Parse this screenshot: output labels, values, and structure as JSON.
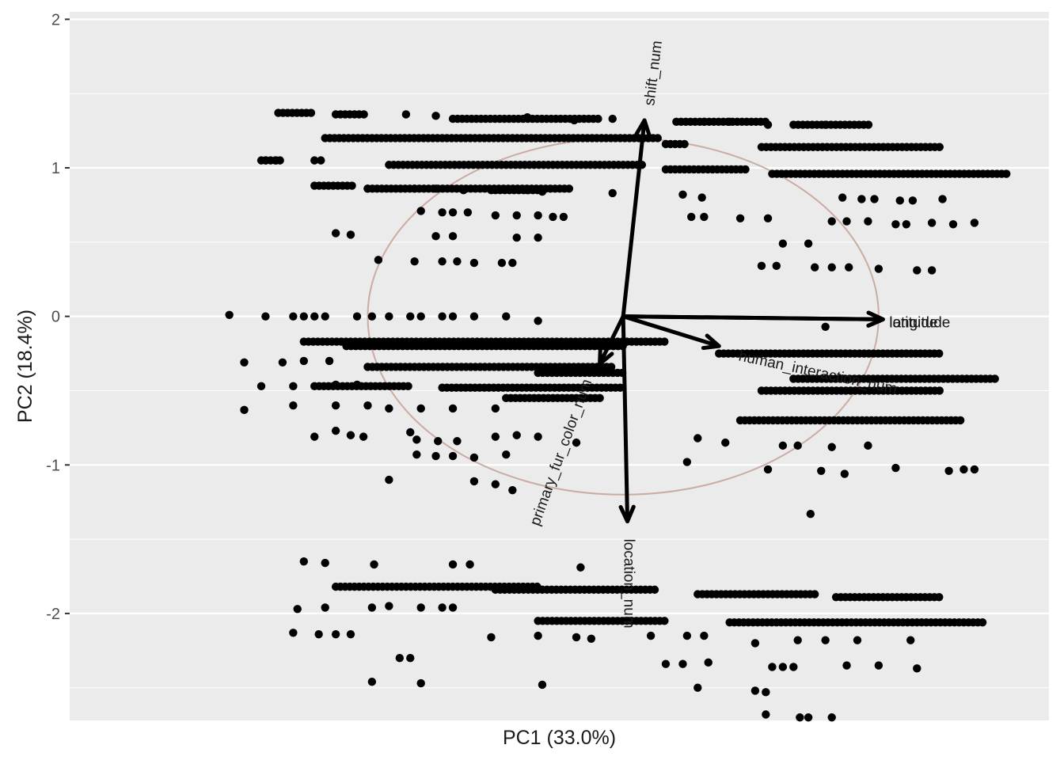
{
  "chart_data": {
    "type": "scatter",
    "subtype": "pca-biplot",
    "title": "",
    "xlabel": "PC1 (33.0%)",
    "ylabel": "PC2 (18.4%)",
    "xlim": [
      -2.6,
      2.0
    ],
    "ylim": [
      -2.72,
      2.05
    ],
    "y_ticks": [
      2,
      1,
      0,
      -1,
      -2
    ],
    "y_tick_labels": [
      "2",
      "1",
      "0",
      "-1",
      "-2"
    ],
    "x_ticks": [],
    "grid": true,
    "legend": "none",
    "colors": {
      "panel": "#ebebeb",
      "grid": "#ffffff",
      "points": "#000000",
      "arrows": "#000000",
      "circle": "#c9aca2"
    },
    "correlation_circle": {
      "center": [
        0.0,
        0.0
      ],
      "radius": 1.2
    },
    "loadings": [
      {
        "name": "shift_num",
        "x": 0.1,
        "y": 1.32
      },
      {
        "name": "longitude",
        "x": 1.22,
        "y": -0.02
      },
      {
        "name": "latitude",
        "x": 1.22,
        "y": -0.02
      },
      {
        "name": "human_interaction_num",
        "x": 0.45,
        "y": -0.2
      },
      {
        "name": "primary_fur_color_num",
        "x": -0.11,
        "y": -0.32
      },
      {
        "name": "location_num",
        "x": 0.02,
        "y": -1.38
      }
    ],
    "bands": [
      {
        "y": 1.37,
        "x_from": -1.62,
        "x_to": -1.45
      },
      {
        "y": 1.36,
        "x_from": -1.35,
        "x_to": -1.2
      },
      {
        "y": 1.33,
        "x_from": -0.8,
        "x_to": -0.1
      },
      {
        "y": 1.31,
        "x_from": 0.25,
        "x_to": 0.68
      },
      {
        "y": 1.29,
        "x_from": 0.8,
        "x_to": 1.17
      },
      {
        "y": 1.2,
        "x_from": -1.4,
        "x_to": 0.17
      },
      {
        "y": 1.16,
        "x_from": 0.2,
        "x_to": 0.3
      },
      {
        "y": 1.14,
        "x_from": 0.65,
        "x_to": 1.5
      },
      {
        "y": 1.05,
        "x_from": -1.7,
        "x_to": -1.6
      },
      {
        "y": 1.02,
        "x_from": -1.1,
        "x_to": 0.1
      },
      {
        "y": 0.99,
        "x_from": 0.2,
        "x_to": 0.58
      },
      {
        "y": 0.96,
        "x_from": 0.7,
        "x_to": 1.8
      },
      {
        "y": 0.88,
        "x_from": -1.45,
        "x_to": -1.27
      },
      {
        "y": 0.86,
        "x_from": -1.2,
        "x_to": -0.25
      },
      {
        "y": 0.85,
        "x_from": -0.6,
        "x_to": -0.4
      },
      {
        "y": -0.17,
        "x_from": -1.5,
        "x_to": 0.2
      },
      {
        "y": -0.2,
        "x_from": -1.3,
        "x_to": 0.0
      },
      {
        "y": -0.25,
        "x_from": 0.45,
        "x_to": 1.5
      },
      {
        "y": -0.34,
        "x_from": -1.2,
        "x_to": -0.05
      },
      {
        "y": -0.38,
        "x_from": -0.4,
        "x_to": 0.0
      },
      {
        "y": -0.42,
        "x_from": 0.8,
        "x_to": 1.75
      },
      {
        "y": -0.47,
        "x_from": -1.45,
        "x_to": -1.0
      },
      {
        "y": -0.48,
        "x_from": -0.85,
        "x_to": 0.0
      },
      {
        "y": -0.5,
        "x_from": 0.65,
        "x_to": 1.5
      },
      {
        "y": -0.55,
        "x_from": -0.55,
        "x_to": -0.1
      },
      {
        "y": -0.7,
        "x_from": 0.55,
        "x_to": 1.6
      },
      {
        "y": -1.82,
        "x_from": -1.35,
        "x_to": -0.4
      },
      {
        "y": -1.84,
        "x_from": -0.6,
        "x_to": 0.15
      },
      {
        "y": -1.87,
        "x_from": 0.35,
        "x_to": 0.9
      },
      {
        "y": -1.89,
        "x_from": 1.0,
        "x_to": 1.5
      },
      {
        "y": -2.05,
        "x_from": -0.4,
        "x_to": 0.2
      },
      {
        "y": -2.06,
        "x_from": 0.5,
        "x_to": 1.7
      }
    ],
    "points": [
      [
        -1.85,
        0.01
      ],
      [
        -1.68,
        0.0
      ],
      [
        -1.55,
        0.0
      ],
      [
        -1.5,
        0.0
      ],
      [
        -1.45,
        0.0
      ],
      [
        -1.4,
        0.0
      ],
      [
        -1.25,
        0.0
      ],
      [
        -1.18,
        0.0
      ],
      [
        -1.1,
        0.0
      ],
      [
        -1.0,
        0.0
      ],
      [
        -0.95,
        0.0
      ],
      [
        -0.85,
        0.0
      ],
      [
        -0.8,
        0.0
      ],
      [
        -0.7,
        0.0
      ],
      [
        -0.55,
        0.0
      ],
      [
        -0.4,
        -0.03
      ],
      [
        0.95,
        -0.07
      ],
      [
        -1.02,
        1.36
      ],
      [
        -0.88,
        1.35
      ],
      [
        -0.45,
        1.34
      ],
      [
        -0.23,
        1.32
      ],
      [
        -0.05,
        1.33
      ],
      [
        0.38,
        1.31
      ],
      [
        0.5,
        1.31
      ],
      [
        0.68,
        1.29
      ],
      [
        0.95,
        1.29
      ],
      [
        -1.68,
        1.05
      ],
      [
        -1.63,
        1.05
      ],
      [
        -1.45,
        1.05
      ],
      [
        -1.42,
        1.05
      ],
      [
        -1.2,
        0.86
      ],
      [
        -0.98,
        0.86
      ],
      [
        -0.88,
        0.86
      ],
      [
        -0.75,
        0.85
      ],
      [
        -0.62,
        0.85
      ],
      [
        -0.45,
        0.85
      ],
      [
        -0.38,
        0.84
      ],
      [
        -0.05,
        0.83
      ],
      [
        0.28,
        0.82
      ],
      [
        0.37,
        0.8
      ],
      [
        1.03,
        0.8
      ],
      [
        1.12,
        0.79
      ],
      [
        1.18,
        0.79
      ],
      [
        1.3,
        0.78
      ],
      [
        1.36,
        0.78
      ],
      [
        1.5,
        0.79
      ],
      [
        -0.95,
        0.71
      ],
      [
        -0.85,
        0.7
      ],
      [
        -0.8,
        0.7
      ],
      [
        -0.73,
        0.7
      ],
      [
        -0.6,
        0.68
      ],
      [
        -0.5,
        0.68
      ],
      [
        -0.4,
        0.68
      ],
      [
        -0.33,
        0.67
      ],
      [
        -0.28,
        0.67
      ],
      [
        0.32,
        0.67
      ],
      [
        0.38,
        0.67
      ],
      [
        0.55,
        0.66
      ],
      [
        0.68,
        0.66
      ],
      [
        0.98,
        0.64
      ],
      [
        1.05,
        0.64
      ],
      [
        1.15,
        0.64
      ],
      [
        1.28,
        0.62
      ],
      [
        1.33,
        0.62
      ],
      [
        1.45,
        0.63
      ],
      [
        1.55,
        0.62
      ],
      [
        1.65,
        0.63
      ],
      [
        -1.35,
        0.56
      ],
      [
        -1.28,
        0.55
      ],
      [
        -0.88,
        0.54
      ],
      [
        -0.8,
        0.54
      ],
      [
        -0.5,
        0.53
      ],
      [
        -0.4,
        0.53
      ],
      [
        0.75,
        0.49
      ],
      [
        0.87,
        0.49
      ],
      [
        -1.15,
        0.38
      ],
      [
        -0.98,
        0.37
      ],
      [
        -0.85,
        0.37
      ],
      [
        -0.78,
        0.37
      ],
      [
        -0.7,
        0.36
      ],
      [
        -0.57,
        0.36
      ],
      [
        -0.52,
        0.36
      ],
      [
        0.65,
        0.34
      ],
      [
        0.72,
        0.34
      ],
      [
        0.9,
        0.33
      ],
      [
        0.98,
        0.33
      ],
      [
        1.06,
        0.33
      ],
      [
        1.2,
        0.32
      ],
      [
        1.38,
        0.31
      ],
      [
        1.45,
        0.31
      ],
      [
        -1.78,
        -0.31
      ],
      [
        -1.6,
        -0.31
      ],
      [
        -1.5,
        -0.3
      ],
      [
        -1.38,
        -0.3
      ],
      [
        -1.7,
        -0.47
      ],
      [
        -1.55,
        -0.47
      ],
      [
        -1.35,
        -0.46
      ],
      [
        -1.25,
        -0.46
      ],
      [
        -1.78,
        -0.63
      ],
      [
        -1.55,
        -0.6
      ],
      [
        -1.35,
        -0.6
      ],
      [
        -1.2,
        -0.6
      ],
      [
        -1.1,
        -0.62
      ],
      [
        -0.95,
        -0.62
      ],
      [
        -0.8,
        -0.62
      ],
      [
        -0.6,
        -0.62
      ],
      [
        -1.45,
        -0.81
      ],
      [
        -1.35,
        -0.77
      ],
      [
        -1.28,
        -0.8
      ],
      [
        -1.22,
        -0.81
      ],
      [
        -1.0,
        -0.78
      ],
      [
        -0.97,
        -0.83
      ],
      [
        -0.87,
        -0.84
      ],
      [
        -0.78,
        -0.84
      ],
      [
        -0.6,
        -0.81
      ],
      [
        -0.5,
        -0.8
      ],
      [
        -0.4,
        -0.81
      ],
      [
        -0.22,
        -0.85
      ],
      [
        0.35,
        -0.82
      ],
      [
        0.48,
        -0.85
      ],
      [
        0.75,
        -0.87
      ],
      [
        0.82,
        -0.87
      ],
      [
        0.98,
        -0.88
      ],
      [
        1.15,
        -0.87
      ],
      [
        -0.97,
        -0.93
      ],
      [
        -0.88,
        -0.94
      ],
      [
        -0.8,
        -0.94
      ],
      [
        -0.7,
        -0.95
      ],
      [
        -0.55,
        -0.93
      ],
      [
        0.3,
        -0.98
      ],
      [
        0.68,
        -1.03
      ],
      [
        0.93,
        -1.04
      ],
      [
        1.04,
        -1.06
      ],
      [
        1.28,
        -1.02
      ],
      [
        1.53,
        -1.04
      ],
      [
        1.6,
        -1.03
      ],
      [
        1.65,
        -1.03
      ],
      [
        -1.1,
        -1.1
      ],
      [
        -0.7,
        -1.11
      ],
      [
        -0.6,
        -1.13
      ],
      [
        -0.52,
        -1.17
      ],
      [
        0.88,
        -1.33
      ],
      [
        -1.5,
        -1.65
      ],
      [
        -1.4,
        -1.66
      ],
      [
        -1.17,
        -1.67
      ],
      [
        -0.8,
        -1.67
      ],
      [
        -0.72,
        -1.67
      ],
      [
        -0.2,
        -1.69
      ],
      [
        -1.53,
        -1.97
      ],
      [
        -1.4,
        -1.96
      ],
      [
        -1.18,
        -1.96
      ],
      [
        -1.1,
        -1.95
      ],
      [
        -0.95,
        -1.96
      ],
      [
        -0.85,
        -1.96
      ],
      [
        -0.8,
        -1.96
      ],
      [
        -1.55,
        -2.13
      ],
      [
        -1.43,
        -2.14
      ],
      [
        -1.35,
        -2.14
      ],
      [
        -1.28,
        -2.14
      ],
      [
        -0.62,
        -2.16
      ],
      [
        -0.4,
        -2.15
      ],
      [
        -0.22,
        -2.16
      ],
      [
        -0.15,
        -2.17
      ],
      [
        0.13,
        -2.15
      ],
      [
        0.3,
        -2.15
      ],
      [
        0.38,
        -2.15
      ],
      [
        0.62,
        -2.2
      ],
      [
        0.82,
        -2.18
      ],
      [
        0.95,
        -2.18
      ],
      [
        1.1,
        -2.18
      ],
      [
        1.35,
        -2.18
      ],
      [
        -1.05,
        -2.3
      ],
      [
        -1.0,
        -2.3
      ],
      [
        0.2,
        -2.34
      ],
      [
        0.28,
        -2.34
      ],
      [
        0.4,
        -2.33
      ],
      [
        0.7,
        -2.36
      ],
      [
        0.75,
        -2.36
      ],
      [
        0.8,
        -2.36
      ],
      [
        1.05,
        -2.35
      ],
      [
        1.2,
        -2.35
      ],
      [
        1.38,
        -2.37
      ],
      [
        -1.18,
        -2.46
      ],
      [
        -0.95,
        -2.47
      ],
      [
        -0.38,
        -2.48
      ],
      [
        0.35,
        -2.5
      ],
      [
        0.62,
        -2.52
      ],
      [
        0.67,
        -2.53
      ],
      [
        0.67,
        -2.68
      ],
      [
        0.83,
        -2.7
      ],
      [
        0.87,
        -2.7
      ],
      [
        0.98,
        -2.7
      ]
    ]
  }
}
